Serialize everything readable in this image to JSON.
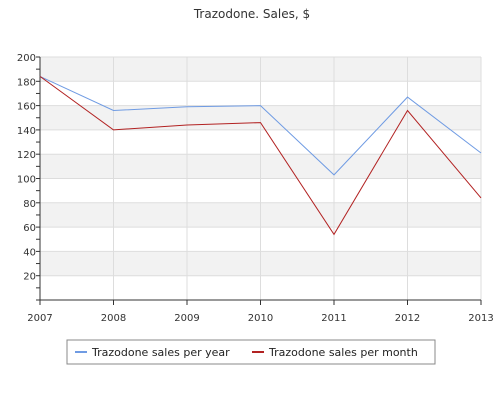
{
  "chart_data": {
    "type": "line",
    "title": "Trazodone. Sales, $",
    "xlabel": "",
    "ylabel": "",
    "categories": [
      "2007",
      "2008",
      "2009",
      "2010",
      "2011",
      "2012",
      "2013"
    ],
    "ylim": [
      0,
      200
    ],
    "yticks": [
      20,
      40,
      60,
      80,
      100,
      120,
      140,
      160,
      180,
      200
    ],
    "grid": true,
    "legend_position": "bottom",
    "series": [
      {
        "name": "Trazodone sales per year",
        "color": "#6f9be3",
        "values": [
          184,
          156,
          159,
          160,
          103,
          167,
          121
        ]
      },
      {
        "name": "Trazodone sales per month",
        "color": "#b22222",
        "values": [
          184,
          140,
          144,
          146,
          54,
          156,
          84
        ]
      }
    ]
  }
}
